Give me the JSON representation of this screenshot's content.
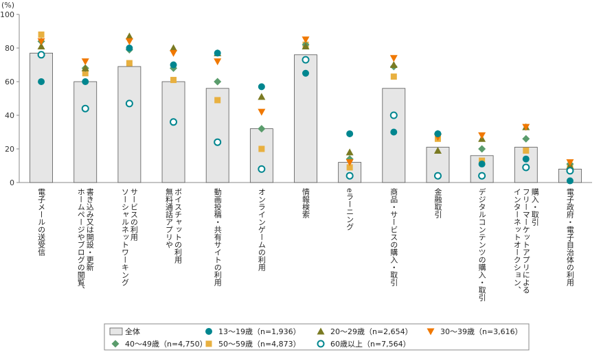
{
  "chart_data": {
    "type": "bar",
    "unit": "(%)",
    "ylim": [
      0,
      100
    ],
    "yticks": [
      0,
      20,
      40,
      60,
      80,
      100
    ],
    "categories": [
      [
        "電子メールの送受信"
      ],
      [
        "ホームページやブログの閲覧、",
        "書き込み又は開設・更新"
      ],
      [
        "ソーシャルネットワーキング",
        "サービスの利用"
      ],
      [
        "無料通話アプリや",
        "ボイスチャットの利用"
      ],
      [
        "動画投稿・共有サイトの利用"
      ],
      [
        "オンラインゲームの利用"
      ],
      [
        "情報検索"
      ],
      [
        "eラーニング"
      ],
      [
        "商品・サービスの購入・取引"
      ],
      [
        "金融取引"
      ],
      [
        "デジタルコンテンツの購入・取引"
      ],
      [
        "インターネットオークション、",
        "フリーマーケットアプリによる",
        "購入・取引"
      ],
      [
        "電子政府・電子自治体の利用"
      ]
    ],
    "series": [
      {
        "name": "全体",
        "kind": "bar",
        "color": "#e6e6e6",
        "values": [
          77,
          60,
          69,
          60,
          56,
          32,
          76,
          12,
          56,
          21,
          16,
          21,
          8
        ]
      },
      {
        "name": "13～19歳（n=1,936）",
        "kind": "circle",
        "color": "#00868f",
        "values": [
          60,
          60,
          80,
          70,
          77,
          57,
          65,
          29,
          30,
          29,
          11,
          14,
          1
        ]
      },
      {
        "name": "20～29歳（n=2,654）",
        "kind": "triangle-up",
        "color": "#7a7a22",
        "values": [
          81,
          68,
          87,
          80,
          77,
          51,
          81,
          18,
          70,
          19,
          26,
          33,
          10
        ]
      },
      {
        "name": "30～39歳（n=3,616）",
        "kind": "triangle-down",
        "color": "#f07800",
        "values": [
          84,
          72,
          84,
          77,
          72,
          42,
          85,
          12,
          74,
          27,
          28,
          33,
          12
        ]
      },
      {
        "name": "40～49歳（n=4,750）",
        "kind": "diamond",
        "color": "#5a9c6c",
        "values": [
          84,
          68,
          79,
          68,
          60,
          32,
          82,
          14,
          69,
          29,
          20,
          26,
          11
        ]
      },
      {
        "name": "50～59歳（n=4,873）",
        "kind": "square",
        "color": "#e8b040",
        "values": [
          88,
          65,
          71,
          61,
          49,
          20,
          82,
          9,
          63,
          26,
          13,
          19,
          9
        ]
      },
      {
        "name": "60歳以上（n=7,564）",
        "kind": "open-circle",
        "color": "#00868f",
        "values": [
          76,
          44,
          47,
          36,
          24,
          8,
          73,
          4,
          40,
          4,
          4,
          9,
          7
        ]
      }
    ],
    "legend": [
      [
        "全体",
        "13～19歳（n=1,936）",
        "20～29歳（n=2,654）",
        "30～39歳（n=3,616）"
      ],
      [
        "40～49歳（n=4,750）",
        "50～59歳（n=4,873）",
        "60歳以上（n=7,564）"
      ]
    ],
    "grid": false,
    "legend_position": "bottom"
  }
}
